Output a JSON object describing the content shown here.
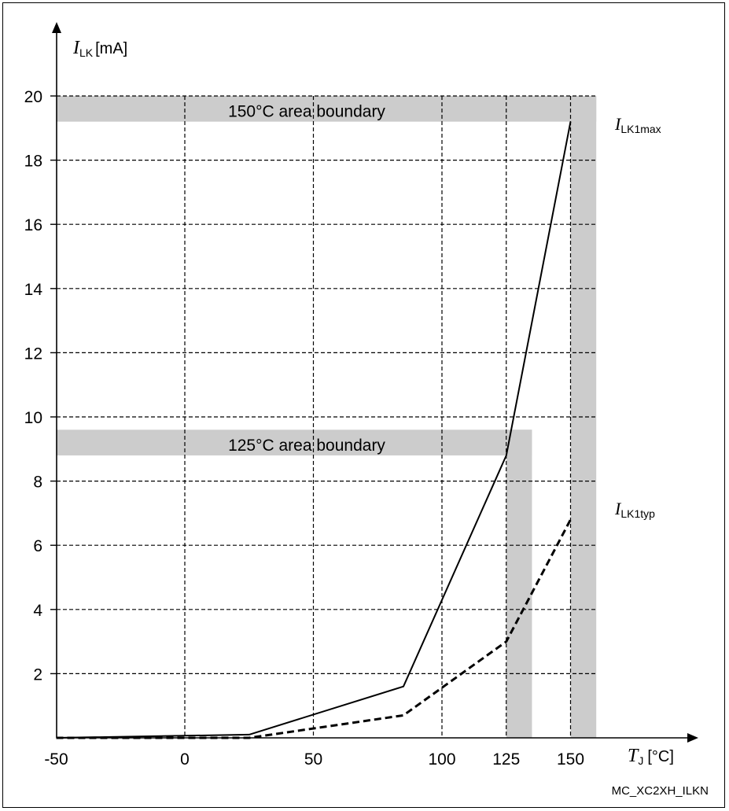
{
  "chart_data": {
    "type": "line",
    "x_ticks": [
      "-50",
      "0",
      "50",
      "100",
      "125",
      "150"
    ],
    "y_ticks": [
      "2",
      "4",
      "6",
      "8",
      "10",
      "12",
      "14",
      "16",
      "18",
      "20"
    ],
    "xlim": [
      -50,
      170
    ],
    "ylim": [
      0,
      22
    ],
    "grid": true,
    "y_axis_label": {
      "symbol": "I",
      "subscript": "LK",
      "unit": "[mA]"
    },
    "x_axis_label": {
      "symbol": "T",
      "subscript": "J",
      "unit": "[°C]"
    },
    "series": [
      {
        "name": "I_LK1max",
        "label_symbol": "I",
        "label_subscript": "LK1max",
        "style": "solid",
        "points": [
          [
            -50,
            0.0
          ],
          [
            25,
            0.1
          ],
          [
            85,
            1.6
          ],
          [
            125,
            8.8
          ],
          [
            150,
            19.2
          ]
        ]
      },
      {
        "name": "I_LK1typ",
        "label_symbol": "I",
        "label_subscript": "LK1typ",
        "style": "dashed",
        "points": [
          [
            -50,
            0.0
          ],
          [
            25,
            0.0
          ],
          [
            85,
            0.7
          ],
          [
            125,
            3.0
          ],
          [
            150,
            6.8
          ]
        ]
      }
    ],
    "area_boundaries": [
      {
        "label": "150°C area boundary",
        "x_end": 160,
        "y_top": 20,
        "y_bottom": 19.2,
        "strip_x0": 150,
        "strip_x1": 160
      },
      {
        "label": "125°C area boundary",
        "x_end": 135,
        "y_top": 9.6,
        "y_bottom": 8.8,
        "strip_x0": 125,
        "strip_x1": 135
      }
    ],
    "colors": {
      "boundary": "#cccccc",
      "line": "#000000",
      "grid": "#000000"
    }
  },
  "footer": {
    "figure_id": "MC_XC2XH_ILKN"
  }
}
